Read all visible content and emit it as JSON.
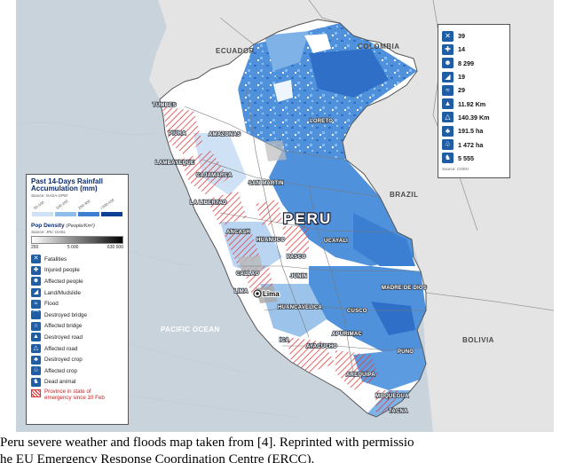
{
  "map": {
    "neighbors": [
      "ECUADOR",
      "COLOMBIA",
      "BRAZIL",
      "BOLIVIA"
    ],
    "ocean_label": "PACIFIC OCEAN",
    "country_label": "PERU",
    "capital": "Lima",
    "regions": [
      "TUMBES",
      "PIURA",
      "LAMBAYEQUE",
      "CAJAMARCA",
      "AMAZONAS",
      "SAN MARTIN",
      "LA LIBERTAD",
      "LORETO",
      "ANCASH",
      "HUANUCO",
      "UCAYALI",
      "PASCO",
      "LIMA",
      "CALLAO",
      "JUNIN",
      "MADRE DE DIOS",
      "HUANCAVELICA",
      "CUSCO",
      "ICA",
      "AYACUCHO",
      "APURIMAC",
      "PUNO",
      "AREQUIPA",
      "MOQUEGUA",
      "TACNA"
    ],
    "colors": {
      "ocean": "#c9d3db",
      "land_outside": "#e4e4e4",
      "rain_light": "#9cc4ea",
      "rain_medium": "#4f91da",
      "rain_dark": "#2f6fc7",
      "hatch": "#e04040",
      "border": "#8a8a8a"
    }
  },
  "legend": {
    "rain_title": "Past 14-Days Rainfall Accumulation",
    "rain_unit": "(mm)",
    "rain_source": "Source: NASA-GPM",
    "rain_ticks": [
      "50-100",
      "100-200",
      "200-300",
      ">300-450"
    ],
    "rain_colors": [
      "#cfe2f5",
      "#8fbde9",
      "#3c7fd2",
      "#0d3f95"
    ],
    "pop_title": "Pop Density",
    "pop_unit": "(People/Km²)",
    "pop_source": "Source: JRC GHSL",
    "pop_ticks": [
      "250",
      "5 000",
      "630 000"
    ],
    "impacts": [
      {
        "icon": "fatalities-icon",
        "glyph": "✕",
        "label": "Fatalities"
      },
      {
        "icon": "injured-people-icon",
        "glyph": "✚",
        "label": "Injured people"
      },
      {
        "icon": "affected-people-icon",
        "glyph": "☻",
        "label": "Affected people"
      },
      {
        "icon": "landslide-icon",
        "glyph": "◢",
        "label": "Land/Mudslide"
      },
      {
        "icon": "flood-icon",
        "glyph": "≈",
        "label": "Flood"
      },
      {
        "icon": "destroyed-bridge-icon",
        "glyph": "⌒",
        "label": "Destroyed bridge"
      },
      {
        "icon": "affected-bridge-icon",
        "glyph": "∩",
        "label": "Affected bridge"
      },
      {
        "icon": "destroyed-road-icon",
        "glyph": "▲",
        "label": "Destroyed road"
      },
      {
        "icon": "affected-road-icon",
        "glyph": "△",
        "label": "Affected road"
      },
      {
        "icon": "destroyed-crop-icon",
        "glyph": "♣",
        "label": "Destroyed crop"
      },
      {
        "icon": "affected-crop-icon",
        "glyph": "♧",
        "label": "Affected crop"
      },
      {
        "icon": "dead-animal-icon",
        "glyph": "♞",
        "label": "Dead animal"
      }
    ],
    "hatch_label_1": "Province in state of",
    "hatch_label_2": "emergency since 10 Feb"
  },
  "stats": {
    "rows": [
      {
        "icon": "fatalities-icon",
        "glyph": "✕",
        "value": "39"
      },
      {
        "icon": "injured-people-icon",
        "glyph": "✚",
        "value": "14"
      },
      {
        "icon": "affected-people-icon",
        "glyph": "☻",
        "value": "8 299"
      },
      {
        "icon": "landslide-icon",
        "glyph": "◢",
        "value": "19"
      },
      {
        "icon": "flood-icon",
        "glyph": "≈",
        "value": "29"
      },
      {
        "icon": "destroyed-road-icon",
        "glyph": "▲",
        "value": "11.92 Km"
      },
      {
        "icon": "affected-road-icon",
        "glyph": "△",
        "value": "140.39 Km"
      },
      {
        "icon": "destroyed-crop-icon",
        "glyph": "♣",
        "value": "191.5 ha"
      },
      {
        "icon": "affected-crop-icon",
        "glyph": "♧",
        "value": "1 472 ha"
      },
      {
        "icon": "dead-animal-icon",
        "glyph": "♞",
        "value": "5 555"
      }
    ],
    "source": "Source: COEN"
  },
  "caption": {
    "line1": "Peru severe weather and floods map taken from [4]. Reprinted with permissio",
    "line2": "he EU Emergency Response Coordination Centre (ERCC)."
  }
}
